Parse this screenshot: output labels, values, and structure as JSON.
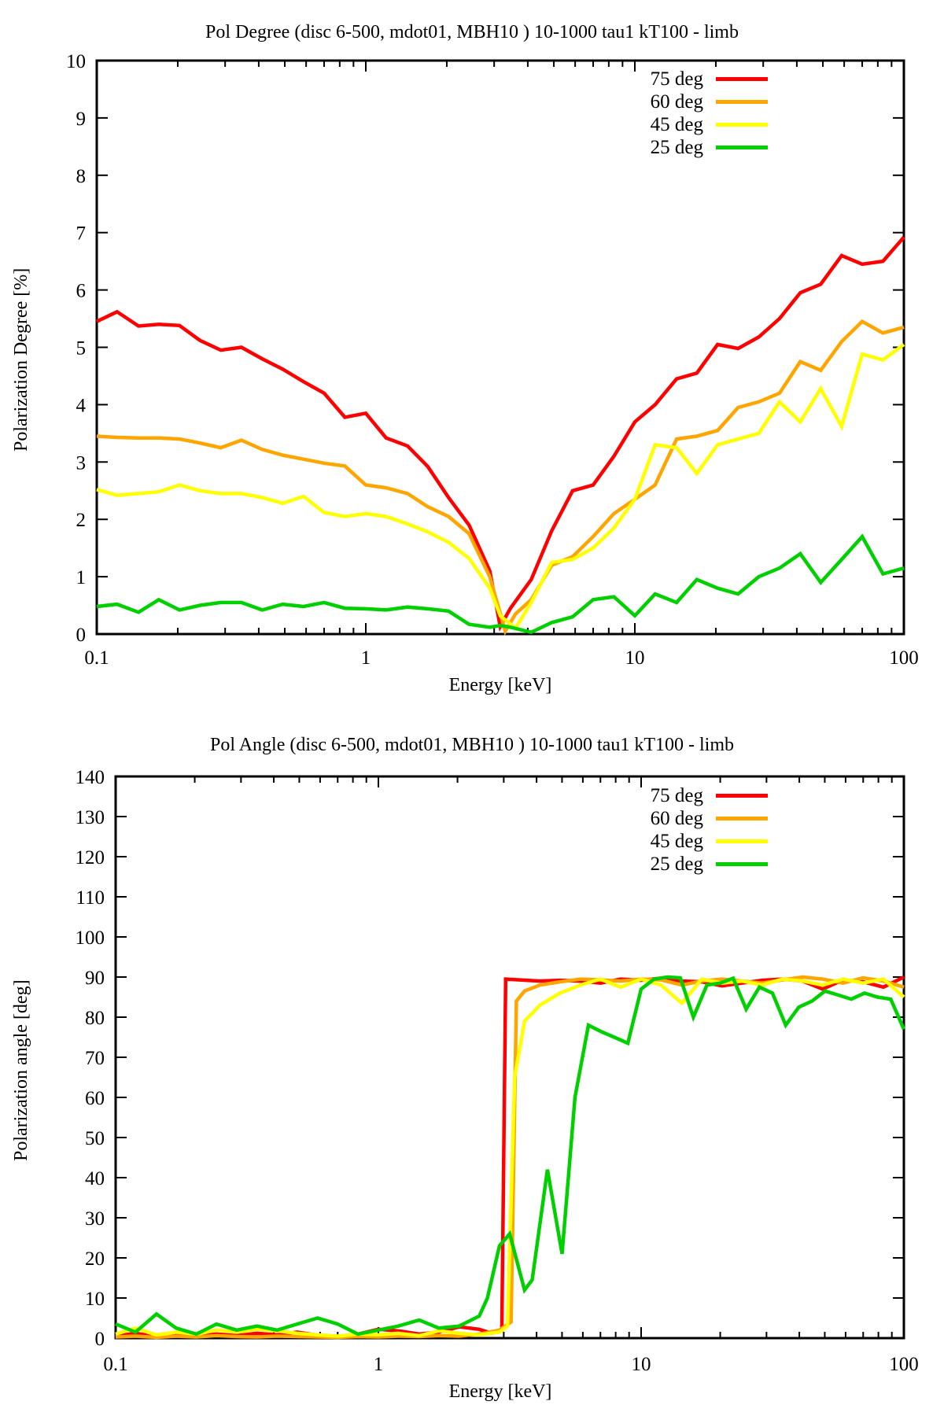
{
  "figure": {
    "background": "#ffffff",
    "axis_color": "#000000"
  },
  "chart_data": [
    {
      "type": "line",
      "title": "Pol Degree (disc 6-500, mdot01, MBH10 ) 10-1000 tau1 kT100 - limb",
      "xlabel": "Energy [keV]",
      "ylabel": "Polarization Degree [%]",
      "xscale": "log",
      "xlim": [
        0.1,
        100
      ],
      "ylim": [
        0,
        10
      ],
      "ytick_step": 1,
      "xtick_labels": [
        "0.1",
        "1",
        "10",
        "100"
      ],
      "grid": false,
      "legend_position": "top-right",
      "series": [
        {
          "name": "75 deg",
          "color": "#ff0000",
          "x": [
            0.1,
            0.119,
            0.143,
            0.17,
            0.203,
            0.242,
            0.289,
            0.345,
            0.412,
            0.491,
            0.587,
            0.7,
            0.836,
            1.0,
            1.19,
            1.43,
            1.7,
            2.03,
            2.42,
            2.89,
            3.16,
            3.45,
            4.12,
            4.91,
            5.87,
            7.0,
            8.36,
            10.0,
            11.9,
            14.3,
            17.0,
            20.3,
            24.2,
            28.9,
            34.5,
            41.2,
            49.1,
            58.7,
            70.0,
            83.6,
            100
          ],
          "y": [
            5.45,
            5.62,
            5.37,
            5.4,
            5.38,
            5.12,
            4.95,
            5.0,
            4.8,
            4.62,
            4.4,
            4.2,
            3.78,
            3.85,
            3.42,
            3.28,
            2.92,
            2.38,
            1.9,
            1.1,
            0.13,
            0.45,
            0.95,
            1.8,
            2.5,
            2.6,
            3.1,
            3.7,
            4.0,
            4.45,
            4.55,
            5.05,
            4.98,
            5.18,
            5.5,
            5.95,
            6.1,
            6.6,
            6.45,
            6.5,
            6.92
          ]
        },
        {
          "name": "60 deg",
          "color": "#ffa500",
          "x": [
            0.1,
            0.119,
            0.143,
            0.17,
            0.203,
            0.242,
            0.289,
            0.345,
            0.412,
            0.491,
            0.587,
            0.7,
            0.836,
            1.0,
            1.19,
            1.43,
            1.7,
            2.03,
            2.42,
            2.89,
            3.3,
            3.6,
            4.12,
            4.91,
            5.87,
            7.0,
            8.36,
            10.0,
            11.9,
            14.3,
            17.0,
            20.3,
            24.2,
            28.9,
            34.5,
            41.2,
            49.1,
            58.7,
            70.0,
            83.6,
            100
          ],
          "y": [
            3.45,
            3.43,
            3.42,
            3.42,
            3.4,
            3.33,
            3.25,
            3.38,
            3.22,
            3.12,
            3.05,
            2.98,
            2.93,
            2.6,
            2.55,
            2.45,
            2.22,
            2.05,
            1.75,
            1.0,
            0.05,
            0.35,
            0.6,
            1.2,
            1.35,
            1.7,
            2.1,
            2.35,
            2.6,
            3.4,
            3.45,
            3.55,
            3.95,
            4.05,
            4.2,
            4.75,
            4.6,
            5.1,
            5.45,
            5.25,
            5.35
          ]
        },
        {
          "name": "45 deg",
          "color": "#ffff00",
          "x": [
            0.1,
            0.119,
            0.143,
            0.17,
            0.203,
            0.242,
            0.289,
            0.345,
            0.412,
            0.491,
            0.587,
            0.7,
            0.836,
            1.0,
            1.19,
            1.43,
            1.7,
            2.03,
            2.42,
            2.89,
            3.16,
            3.6,
            4.12,
            4.91,
            5.87,
            7.0,
            8.36,
            10.0,
            11.9,
            14.3,
            17.0,
            20.3,
            24.2,
            28.9,
            34.5,
            41.2,
            49.1,
            58.7,
            70.0,
            83.6,
            100
          ],
          "y": [
            2.52,
            2.42,
            2.45,
            2.48,
            2.6,
            2.5,
            2.45,
            2.45,
            2.38,
            2.28,
            2.4,
            2.12,
            2.05,
            2.1,
            2.05,
            1.92,
            1.78,
            1.6,
            1.32,
            0.8,
            0.32,
            0.1,
            0.55,
            1.25,
            1.3,
            1.5,
            1.85,
            2.35,
            3.3,
            3.25,
            2.8,
            3.3,
            3.4,
            3.5,
            4.05,
            3.7,
            4.28,
            3.62,
            4.88,
            4.78,
            5.05
          ]
        },
        {
          "name": "25 deg",
          "color": "#00d000",
          "x": [
            0.1,
            0.119,
            0.143,
            0.17,
            0.203,
            0.242,
            0.289,
            0.345,
            0.412,
            0.491,
            0.587,
            0.7,
            0.836,
            1.0,
            1.19,
            1.43,
            1.7,
            2.03,
            2.42,
            2.89,
            3.16,
            3.45,
            4.12,
            4.91,
            5.87,
            7.0,
            8.36,
            10.0,
            11.9,
            14.3,
            17.0,
            20.3,
            24.2,
            28.9,
            34.5,
            41.2,
            49.1,
            58.7,
            70.0,
            83.6,
            100
          ],
          "y": [
            0.48,
            0.52,
            0.38,
            0.6,
            0.42,
            0.5,
            0.55,
            0.55,
            0.42,
            0.52,
            0.48,
            0.55,
            0.45,
            0.44,
            0.42,
            0.47,
            0.44,
            0.4,
            0.17,
            0.12,
            0.15,
            0.12,
            0.03,
            0.2,
            0.3,
            0.6,
            0.65,
            0.32,
            0.7,
            0.55,
            0.95,
            0.8,
            0.7,
            1.0,
            1.15,
            1.4,
            0.9,
            1.3,
            1.7,
            1.05,
            1.15
          ]
        }
      ]
    },
    {
      "type": "line",
      "title": "Pol Angle (disc 6-500, mdot01, MBH10 ) 10-1000 tau1 kT100 - limb",
      "xlabel": "Energy [keV]",
      "ylabel": "Polarization angle [deg]",
      "xscale": "log",
      "xlim": [
        0.1,
        100
      ],
      "ylim": [
        0,
        140
      ],
      "ytick_step": 10,
      "xtick_labels": [
        "0.1",
        "1",
        "10",
        "100"
      ],
      "grid": false,
      "legend_position": "top-right",
      "series": [
        {
          "name": "75 deg",
          "color": "#ff0000",
          "x": [
            0.1,
            0.119,
            0.143,
            0.17,
            0.203,
            0.242,
            0.289,
            0.345,
            0.412,
            0.491,
            0.587,
            0.7,
            0.836,
            1.0,
            1.19,
            1.43,
            1.7,
            2.03,
            2.42,
            2.7,
            2.95,
            3.05,
            3.45,
            4.12,
            4.91,
            5.87,
            7.0,
            8.36,
            10.0,
            11.9,
            14.3,
            17.0,
            20.3,
            24.2,
            28.9,
            34.5,
            41.2,
            49.1,
            58.7,
            70.0,
            83.6,
            100
          ],
          "y": [
            0.5,
            1.2,
            0.4,
            0.8,
            0.5,
            1.0,
            0.6,
            1.2,
            0.8,
            1.5,
            0.7,
            0.4,
            1.0,
            2.2,
            1.8,
            1.0,
            1.5,
            2.8,
            2.2,
            1.2,
            2.0,
            89.5,
            89.3,
            89.0,
            89.2,
            89.0,
            88.5,
            89.5,
            89.2,
            89.7,
            89.0,
            88.8,
            87.8,
            88.5,
            89.2,
            89.5,
            89.0,
            87.0,
            89.3,
            88.8,
            87.5,
            90.0
          ]
        },
        {
          "name": "60 deg",
          "color": "#ffa500",
          "x": [
            0.1,
            0.119,
            0.143,
            0.17,
            0.203,
            0.242,
            0.289,
            0.345,
            0.412,
            0.491,
            0.587,
            0.7,
            0.836,
            1.0,
            1.19,
            1.43,
            1.7,
            2.03,
            2.42,
            2.89,
            3.2,
            3.35,
            3.6,
            4.12,
            4.91,
            5.87,
            7.0,
            8.36,
            10.0,
            11.9,
            14.3,
            17.0,
            20.3,
            24.2,
            28.9,
            34.5,
            41.2,
            49.1,
            58.7,
            70.0,
            83.6,
            100
          ],
          "y": [
            0.3,
            0.5,
            0.2,
            0.5,
            0.3,
            0.6,
            0.4,
            0.3,
            0.5,
            0.4,
            0.3,
            0.2,
            0.4,
            0.3,
            0.5,
            0.4,
            0.6,
            0.5,
            1.0,
            2.0,
            4.0,
            84.0,
            86.5,
            88.0,
            88.8,
            89.5,
            89.3,
            89.0,
            89.5,
            89.3,
            88.0,
            89.0,
            89.5,
            89.0,
            88.5,
            89.3,
            90.0,
            89.5,
            88.5,
            89.8,
            89.0,
            87.5
          ]
        },
        {
          "name": "45 deg",
          "color": "#ffff00",
          "x": [
            0.1,
            0.119,
            0.143,
            0.17,
            0.203,
            0.242,
            0.289,
            0.345,
            0.412,
            0.491,
            0.587,
            0.7,
            0.836,
            1.0,
            1.19,
            1.43,
            1.7,
            2.03,
            2.42,
            2.89,
            3.1,
            3.3,
            3.6,
            4.12,
            4.91,
            5.87,
            7.0,
            8.36,
            10.0,
            11.9,
            14.3,
            17.0,
            20.3,
            24.2,
            28.9,
            34.5,
            41.2,
            49.1,
            58.7,
            70.0,
            83.6,
            100
          ],
          "y": [
            1.0,
            2.5,
            0.8,
            1.5,
            1.0,
            2.0,
            1.5,
            2.2,
            1.8,
            1.2,
            0.8,
            0.5,
            1.0,
            0.8,
            1.2,
            0.6,
            1.8,
            1.2,
            0.8,
            1.5,
            3.0,
            65.0,
            79.0,
            83.0,
            86.0,
            88.0,
            89.5,
            87.5,
            89.5,
            88.0,
            83.5,
            89.5,
            88.5,
            89.0,
            88.0,
            89.5,
            89.0,
            88.0,
            89.5,
            88.5,
            89.5,
            85.0
          ]
        },
        {
          "name": "25 deg",
          "color": "#00d000",
          "x": [
            0.1,
            0.119,
            0.143,
            0.17,
            0.203,
            0.242,
            0.289,
            0.345,
            0.412,
            0.491,
            0.587,
            0.7,
            0.836,
            1.0,
            1.19,
            1.43,
            1.7,
            2.03,
            2.42,
            2.6,
            2.89,
            3.16,
            3.6,
            3.85,
            4.4,
            5.0,
            5.6,
            6.3,
            7.0,
            7.9,
            8.9,
            10.0,
            11.2,
            12.6,
            14.1,
            15.8,
            17.8,
            20.0,
            22.4,
            25.1,
            28.2,
            31.6,
            35.5,
            39.8,
            44.7,
            50.1,
            56.2,
            63.1,
            70.8,
            79.4,
            89.1,
            100
          ],
          "y": [
            3.5,
            1.5,
            6.0,
            2.5,
            1.0,
            3.5,
            2.0,
            3.0,
            2.0,
            3.5,
            5.0,
            3.5,
            1.0,
            2.0,
            3.0,
            4.5,
            2.5,
            3.0,
            5.5,
            10.0,
            23.0,
            26.0,
            12.0,
            14.5,
            42.0,
            21.0,
            60.0,
            78.0,
            76.5,
            75.0,
            73.5,
            87.0,
            89.5,
            90.0,
            89.8,
            80.0,
            88.0,
            88.5,
            89.7,
            82.0,
            87.5,
            86.0,
            78.0,
            82.5,
            84.0,
            86.5,
            85.5,
            84.5,
            86.0,
            85.0,
            84.5,
            77.0
          ]
        }
      ]
    }
  ]
}
